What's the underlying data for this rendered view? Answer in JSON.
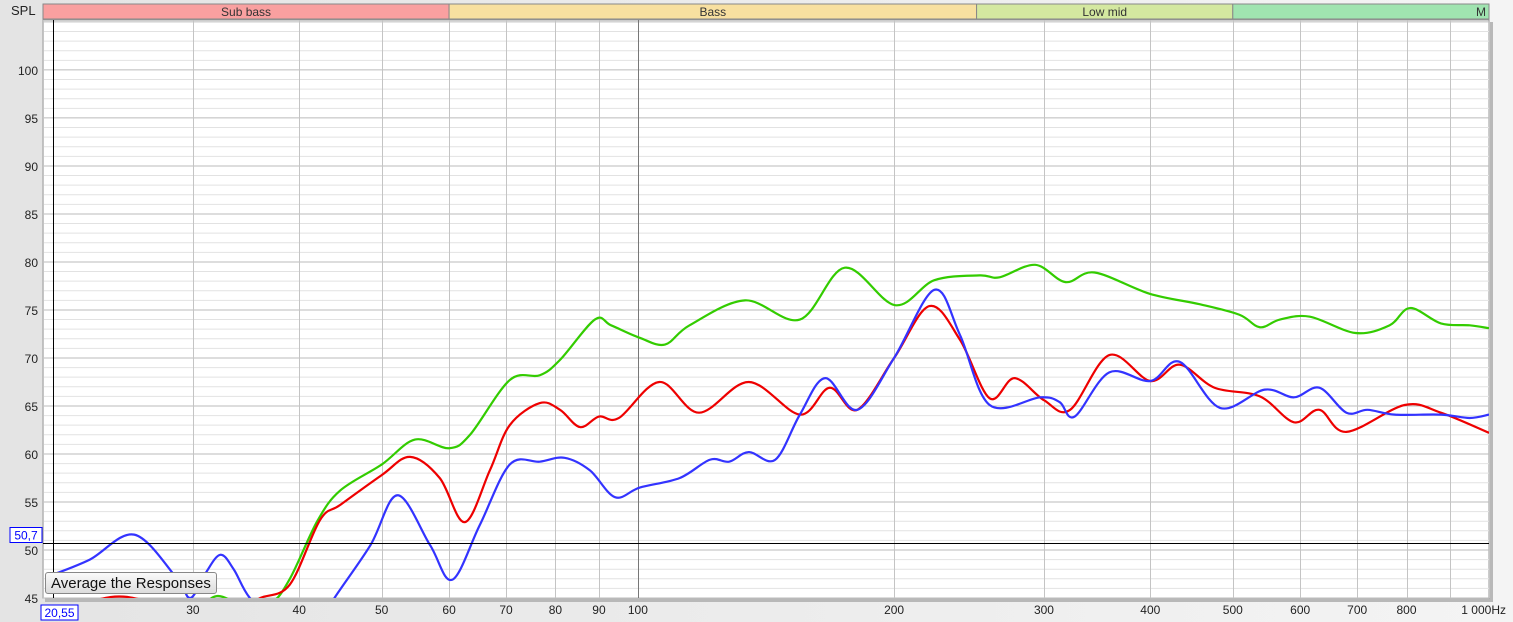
{
  "chart_data": {
    "type": "line",
    "ylabel": "SPL",
    "x_unit": "Hz",
    "x_scale": "log",
    "xlim": [
      20,
      1000
    ],
    "ylim": [
      45,
      105.2
    ],
    "grid": true,
    "y_ticks": [
      45,
      50,
      55,
      60,
      65,
      70,
      75,
      80,
      85,
      90,
      95,
      100
    ],
    "y_tick_labels": [
      "45",
      "50",
      "55",
      "60",
      "65",
      "70",
      "75",
      "80",
      "85",
      "90",
      "95",
      "100"
    ],
    "x_ticks": [
      30,
      40,
      50,
      60,
      70,
      80,
      90,
      100,
      200,
      300,
      400,
      500,
      600,
      700,
      800,
      1000
    ],
    "x_tick_labels": [
      "30",
      "40",
      "50",
      "60",
      "70",
      "80",
      "90",
      "100",
      "200",
      "300",
      "400",
      "500",
      "600",
      "700",
      "800",
      "1 000Hz"
    ],
    "bands": [
      {
        "label": "Sub bass",
        "from": 20,
        "to": 60,
        "color": "#f9a0a0"
      },
      {
        "label": "Bass",
        "from": 60,
        "to": 250,
        "color": "#f8e0a0"
      },
      {
        "label": "Low mid",
        "from": 250,
        "to": 500,
        "color": "#d4e8a0"
      },
      {
        "label": "M",
        "from": 500,
        "to": 1000,
        "color": "#a0e4b0"
      }
    ],
    "cursor": {
      "x_label": "20,55",
      "y_label": "50,7",
      "x": 20.55,
      "y": 50.7
    },
    "series": [
      {
        "color": "#33cc00",
        "points": [
          [
            20,
            44
          ],
          [
            25,
            43.5
          ],
          [
            30,
            44
          ],
          [
            32,
            45.2
          ],
          [
            34,
            44.5
          ],
          [
            37,
            44.5
          ],
          [
            39,
            47
          ],
          [
            42,
            53
          ],
          [
            44.7,
            56.2
          ],
          [
            50,
            58.9
          ],
          [
            54.7,
            61.5
          ],
          [
            60,
            60.6
          ],
          [
            63.5,
            62
          ],
          [
            70.7,
            67.7
          ],
          [
            76.7,
            68.2
          ],
          [
            81,
            69.8
          ],
          [
            89,
            74
          ],
          [
            93,
            73.4
          ],
          [
            100.5,
            72.1
          ],
          [
            107.6,
            71.4
          ],
          [
            115,
            73.4
          ],
          [
            133.6,
            76
          ],
          [
            155,
            74
          ],
          [
            175,
            79.4
          ],
          [
            200.5,
            75.5
          ],
          [
            223,
            78.1
          ],
          [
            252,
            78.6
          ],
          [
            266,
            78.4
          ],
          [
            293,
            79.7
          ],
          [
            318,
            77.9
          ],
          [
            344,
            78.9
          ],
          [
            399,
            76.7
          ],
          [
            457,
            75.6
          ],
          [
            509,
            74.5
          ],
          [
            538,
            73.2
          ],
          [
            568,
            74
          ],
          [
            616,
            74.3
          ],
          [
            697,
            72.6
          ],
          [
            764,
            73.4
          ],
          [
            808,
            75.2
          ],
          [
            878,
            73.6
          ],
          [
            949,
            73.4
          ],
          [
            1000,
            73.1
          ]
        ]
      },
      {
        "color": "#ee0000",
        "points": [
          [
            20,
            43
          ],
          [
            24,
            45.1
          ],
          [
            27,
            44.5
          ],
          [
            30,
            43.5
          ],
          [
            34,
            43.8
          ],
          [
            36,
            45
          ],
          [
            39,
            46.4
          ],
          [
            42.3,
            53.1
          ],
          [
            44.7,
            54.7
          ],
          [
            50,
            57.8
          ],
          [
            54,
            59.7
          ],
          [
            58.5,
            57.5
          ],
          [
            62.6,
            52.9
          ],
          [
            67,
            58.3
          ],
          [
            70.7,
            63
          ],
          [
            76.7,
            65.3
          ],
          [
            81,
            64.6
          ],
          [
            85.5,
            62.8
          ],
          [
            90,
            63.9
          ],
          [
            95,
            63.75
          ],
          [
            106,
            67.5
          ],
          [
            118,
            64.3
          ],
          [
            135,
            67.5
          ],
          [
            155,
            64.1
          ],
          [
            168,
            66.9
          ],
          [
            181,
            64.6
          ],
          [
            200,
            70
          ],
          [
            220,
            75.4
          ],
          [
            239,
            71.9
          ],
          [
            259,
            65.8
          ],
          [
            277,
            67.9
          ],
          [
            300,
            65.6
          ],
          [
            322,
            64.6
          ],
          [
            358,
            70.3
          ],
          [
            400,
            67.6
          ],
          [
            433,
            69.3
          ],
          [
            476,
            66.9
          ],
          [
            538,
            66
          ],
          [
            590,
            63.3
          ],
          [
            632,
            64.6
          ],
          [
            680,
            62.3
          ],
          [
            796,
            65.1
          ],
          [
            878,
            64.3
          ],
          [
            1000,
            62.2
          ]
        ]
      },
      {
        "color": "#3333ff",
        "points": [
          [
            20.5,
            47.4
          ],
          [
            22.7,
            49
          ],
          [
            25.6,
            51.6
          ],
          [
            28.7,
            47.1
          ],
          [
            29.8,
            45
          ],
          [
            31,
            47.5
          ],
          [
            32.3,
            49.5
          ],
          [
            33.5,
            48
          ],
          [
            35,
            45
          ],
          [
            38,
            42
          ],
          [
            42,
            42
          ],
          [
            44,
            45
          ],
          [
            48.5,
            50.5
          ],
          [
            52.2,
            55.7
          ],
          [
            57,
            50.5
          ],
          [
            60.5,
            46.9
          ],
          [
            65.2,
            52.6
          ],
          [
            70.7,
            58.9
          ],
          [
            76.7,
            59.2
          ],
          [
            82,
            59.6
          ],
          [
            87.8,
            58.3
          ],
          [
            94,
            55.5
          ],
          [
            100.5,
            56.5
          ],
          [
            112,
            57.5
          ],
          [
            121.5,
            59.4
          ],
          [
            128,
            59.2
          ],
          [
            135,
            60.2
          ],
          [
            145,
            59.4
          ],
          [
            155,
            64.1
          ],
          [
            166,
            67.9
          ],
          [
            181,
            64.6
          ],
          [
            200,
            70
          ],
          [
            223,
            77.1
          ],
          [
            239,
            72.4
          ],
          [
            259,
            65.1
          ],
          [
            297,
            65.9
          ],
          [
            313,
            65.4
          ],
          [
            326,
            63.9
          ],
          [
            358,
            68.5
          ],
          [
            400,
            67.6
          ],
          [
            433,
            69.6
          ],
          [
            483,
            64.8
          ],
          [
            545,
            66.7
          ],
          [
            590,
            65.9
          ],
          [
            632,
            66.9
          ],
          [
            680,
            64.3
          ],
          [
            720,
            64.6
          ],
          [
            775,
            64.1
          ],
          [
            878,
            64.1
          ],
          [
            949,
            63.75
          ],
          [
            1000,
            64.1
          ]
        ]
      }
    ]
  },
  "controls": {
    "average_button": "Average the Responses"
  }
}
